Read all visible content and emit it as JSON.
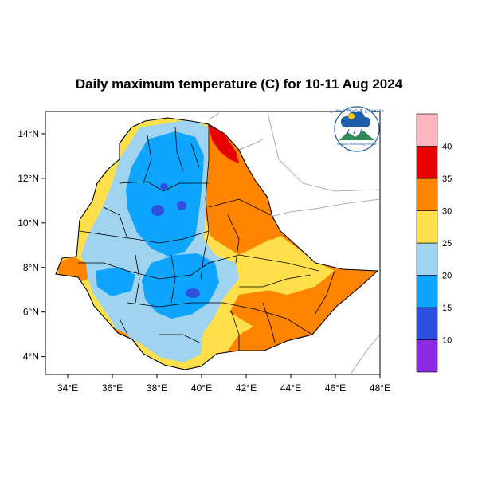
{
  "title": "Daily maximum temperature (C) for 10-11 Aug 2024",
  "logo": {
    "top_text": "ኢትዮጵያ ሜትሮሎጂ ኢንስቲትዩት",
    "bottom_text": "Ethiopian Meteorology Institute",
    "icon": "cloud-rain-sun-logo"
  },
  "axes": {
    "x_ticks": [
      "34°E",
      "36°E",
      "38°E",
      "40°E",
      "42°E",
      "44°E",
      "46°E",
      "48°E"
    ],
    "y_ticks": [
      "14°N",
      "12°N",
      "10°N",
      "8°N",
      "6°N",
      "4°N"
    ],
    "lon_range": [
      33,
      48
    ],
    "lat_range": [
      3.2,
      15
    ]
  },
  "colorbar": {
    "labels": [
      "10",
      "15",
      "20",
      "25",
      "30",
      "35",
      "40"
    ],
    "colors": [
      "#8a2be2",
      "#2f4fe0",
      "#0ea5ff",
      "#9fd3ef",
      "#ffe04a",
      "#ff8400",
      "#e60000",
      "#ffb6c1"
    ]
  },
  "chart_data": {
    "type": "heatmap",
    "title": "Daily maximum temperature (C) for 10-11 Aug 2024",
    "legend_levels": [
      10,
      15,
      20,
      25,
      30,
      35,
      40
    ],
    "region_temperature_classes_C": {
      "northern-danakil": "35-40",
      "afar-lowlands": "30-35",
      "central-highlands": "15-25",
      "southeastern-lowlands": "30-35",
      "western-lowlands": "25-30",
      "southern-highlands": "15-25"
    }
  }
}
